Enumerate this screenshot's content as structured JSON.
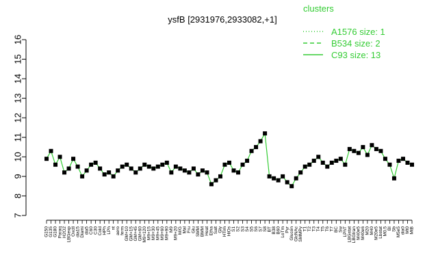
{
  "chart_data": {
    "type": "line",
    "title": "ysfB [2931976,2933082,+1]",
    "xlabel": "",
    "ylabel": "",
    "ylim": [
      7,
      16
    ],
    "yticks": [
      7,
      8,
      9,
      10,
      11,
      12,
      13,
      14,
      15,
      16
    ],
    "grid": false,
    "legend": {
      "title": "clusters",
      "placement": "top-right",
      "color": "#33cc33",
      "entries": [
        {
          "label": "A1576 size: 1",
          "style": "dotted"
        },
        {
          "label": "B534 size: 2",
          "style": "dashed"
        },
        {
          "label": "C93 size: 13",
          "style": "solid"
        }
      ]
    },
    "line_color": "#33cc33",
    "point_color": "#000000",
    "x_tick_labels": [
      "G150",
      "G135",
      "G180",
      "Paraq",
      "H2O2",
      "LBGexp",
      "Oxctl",
      "dia15",
      "Diami",
      "dia5",
      "C60",
      "C30",
      "Cold",
      "HPh",
      "LPh",
      "nt",
      "aero",
      "ferm",
      "GM+10",
      "GM+15",
      "GM+45",
      "GM+60",
      "M9+120",
      "M9+15",
      "M9+30",
      "M9+45",
      "M9+60",
      "M9+90",
      "M9",
      "M9+20",
      "M/G",
      "Mal",
      "Fru",
      "Glu",
      "SMM",
      "BMM",
      "Heat",
      "Etha",
      "Salt",
      "Gly",
      "HTim",
      "HiOs",
      "S1",
      "S2",
      "S3",
      "S4",
      "S5",
      "S6",
      "S7",
      "S8",
      "BT",
      "B38",
      "B60",
      "LoTm",
      "Pyr",
      "Glucon",
      "GlcNAc",
      "SMMPy",
      "T1",
      "T2",
      "T3",
      "T4",
      "T5",
      "T6",
      "T7",
      "BC",
      "Sw",
      "LPhT",
      "LBGstat",
      "LBGtran",
      "M40e5",
      "M40e6",
      "M20",
      "M40",
      "M20e5",
      "Lbstat",
      "M0.5",
      "BI",
      "Sb",
      "M5e5",
      "dia0",
      "Mt0",
      "MtB"
    ],
    "series": [
      {
        "values": [
          9.9,
          10.3,
          9.6,
          10.0,
          9.2,
          9.4,
          9.9,
          9.5,
          9.0,
          9.3,
          9.6,
          9.7,
          9.4,
          9.1,
          9.2,
          9.0,
          9.3,
          9.5,
          9.6,
          9.4,
          9.2,
          9.4,
          9.6,
          9.5,
          9.4,
          9.5,
          9.6,
          9.7,
          9.2,
          9.5,
          9.4,
          9.3,
          9.2,
          9.4,
          9.1,
          9.3,
          9.2,
          8.6,
          8.8,
          9.0,
          9.6,
          9.7,
          9.3,
          9.2,
          9.6,
          9.8,
          10.3,
          10.5,
          10.8,
          11.2,
          9.0,
          8.9,
          8.8,
          9.0,
          8.7,
          8.5,
          8.9,
          9.2,
          9.5,
          9.6,
          9.8,
          10.0,
          9.7,
          9.5,
          9.7,
          9.8,
          9.9,
          9.6,
          10.4,
          10.3,
          10.2,
          10.5,
          10.1,
          10.6,
          10.4,
          10.3,
          9.9,
          9.6,
          8.9,
          9.8,
          9.9,
          9.7,
          9.6
        ]
      }
    ]
  }
}
